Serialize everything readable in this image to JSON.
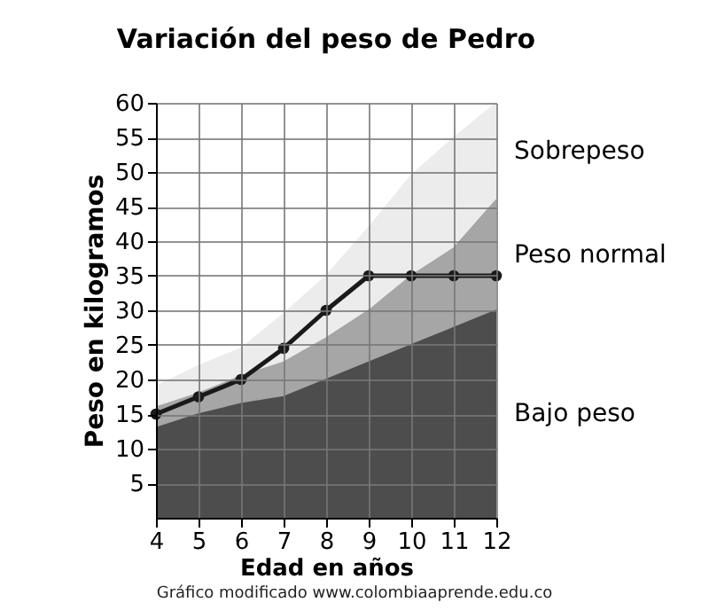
{
  "chart_data": {
    "type": "area",
    "title": "Variación del peso de Pedro",
    "xlabel": "Edad en años",
    "ylabel": "Peso en kilogramos",
    "annotations": [
      "Gráfico modificado www.colombiaaprende.edu.co"
    ],
    "x": [
      4,
      5,
      6,
      7,
      8,
      9,
      10,
      11,
      12
    ],
    "stacked": true,
    "series": [
      {
        "name": "Bajo peso",
        "color": "#4d4d4d",
        "values": [
          13,
          15,
          16.5,
          17.5,
          20,
          22.5,
          25,
          27.5,
          30
        ]
      },
      {
        "name": "Peso normal",
        "color": "#a6a6a6",
        "values": [
          3,
          3,
          4,
          5,
          6,
          7.5,
          10,
          11.5,
          16
        ]
      },
      {
        "name": "Sobrepeso",
        "color": "#ececec",
        "values": [
          3,
          4,
          4,
          7,
          9,
          12,
          14.5,
          16,
          14
        ]
      },
      {
        "type": "line",
        "color": "#1a1a1a",
        "marker": "circle",
        "values": [
          15,
          17.5,
          20,
          24.5,
          30,
          35,
          35,
          35,
          35
        ]
      }
    ],
    "xlim": [
      4,
      12
    ],
    "xticks": [
      4,
      5,
      6,
      7,
      8,
      9,
      10,
      11,
      12
    ],
    "ylim": [
      0,
      60
    ],
    "yticks": [
      5,
      10,
      15,
      20,
      25,
      30,
      35,
      40,
      45,
      50,
      55,
      60
    ],
    "grid": true,
    "legend": false
  }
}
